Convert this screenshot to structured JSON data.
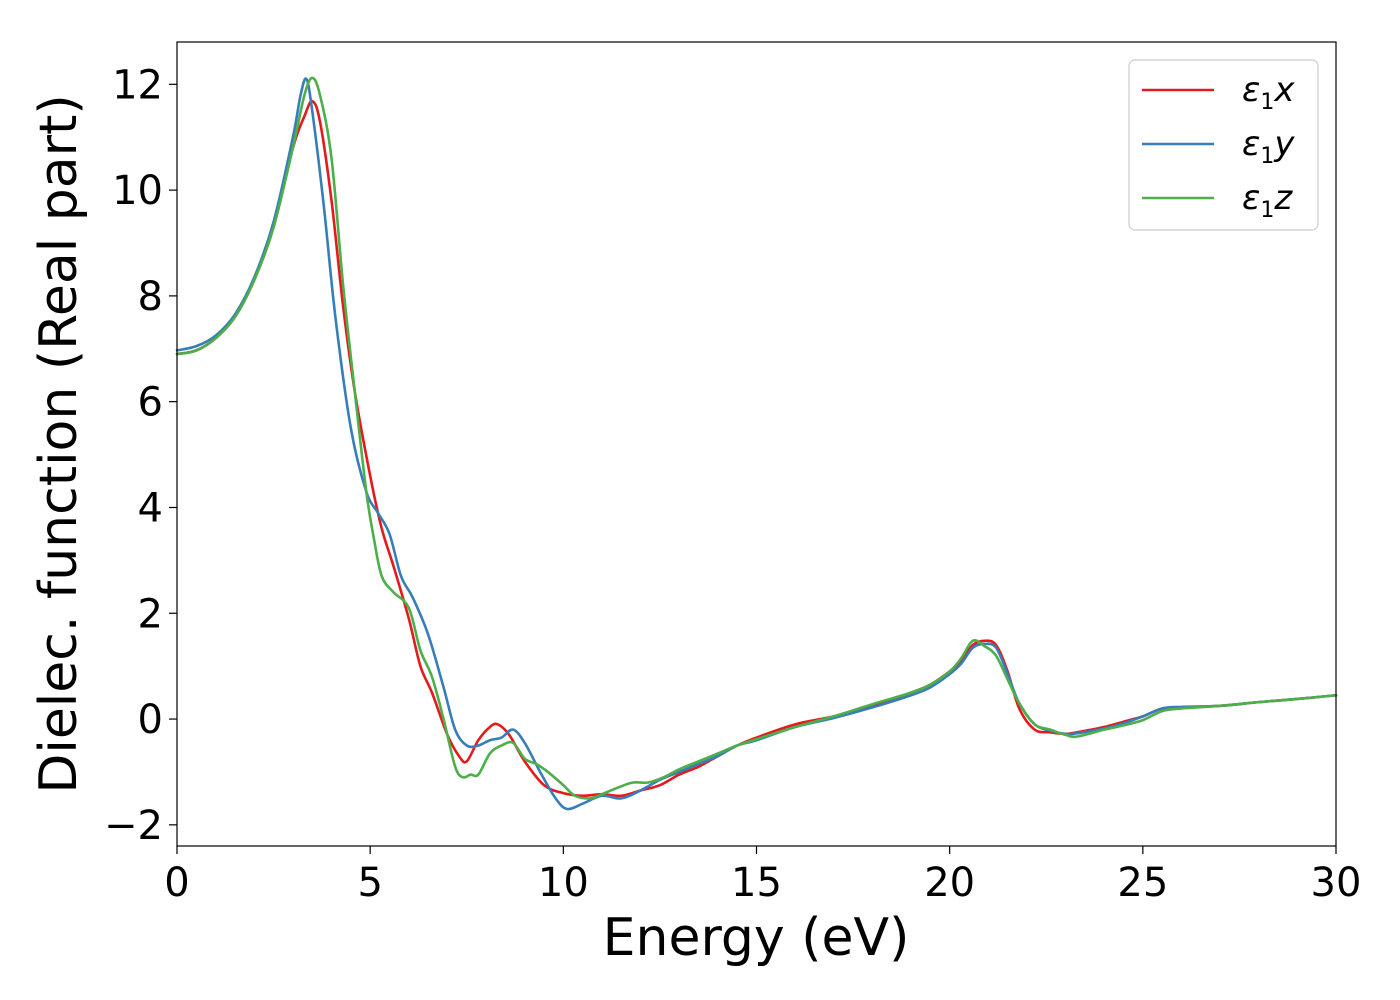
{
  "chart_data": {
    "type": "line",
    "xlabel": "Energy (eV)",
    "ylabel": "Dielec. function (Real part)",
    "xlim": [
      0,
      30
    ],
    "ylim": [
      -2.4,
      12.8
    ],
    "xticks": [
      0,
      5,
      10,
      15,
      20,
      25,
      30
    ],
    "xtick_labels": [
      "0",
      "5",
      "10",
      "15",
      "20",
      "25",
      "30"
    ],
    "yticks": [
      -2,
      0,
      2,
      4,
      6,
      8,
      10,
      12
    ],
    "ytick_labels": [
      "−2",
      "0",
      "2",
      "4",
      "6",
      "8",
      "10",
      "12"
    ],
    "grid": false,
    "legend_position": "top-right",
    "series": [
      {
        "name": "ε1x",
        "legend": {
          "base": "ε",
          "sub": "1",
          "suffix": "x"
        },
        "color": "#e41a1c",
        "x": [
          0,
          0.5,
          1,
          1.5,
          2,
          2.5,
          3,
          3.3,
          3.5,
          3.7,
          4,
          4.3,
          4.6,
          5,
          5.3,
          5.6,
          6,
          6.3,
          6.6,
          7,
          7.3,
          7.5,
          7.8,
          8.1,
          8.3,
          8.6,
          9,
          9.5,
          10,
          10.5,
          11,
          11.5,
          12,
          12.5,
          13,
          13.5,
          14,
          14.5,
          15,
          16,
          17,
          18,
          19,
          19.5,
          20,
          20.3,
          20.6,
          20.9,
          21.2,
          21.5,
          21.8,
          22.2,
          22.6,
          23,
          23.3,
          24,
          24.5,
          25,
          25.5,
          26,
          27,
          28,
          29,
          30
        ],
        "y": [
          6.9,
          6.97,
          7.2,
          7.6,
          8.3,
          9.3,
          10.8,
          11.4,
          11.68,
          11.3,
          9.8,
          7.8,
          6.2,
          4.6,
          3.6,
          2.9,
          1.9,
          1.0,
          0.5,
          -0.3,
          -0.7,
          -0.8,
          -0.4,
          -0.15,
          -0.1,
          -0.3,
          -0.8,
          -1.25,
          -1.4,
          -1.45,
          -1.42,
          -1.45,
          -1.35,
          -1.25,
          -1.05,
          -0.9,
          -0.7,
          -0.5,
          -0.35,
          -0.1,
          0.05,
          0.25,
          0.5,
          0.65,
          0.9,
          1.1,
          1.4,
          1.48,
          1.4,
          0.9,
          0.2,
          -0.2,
          -0.25,
          -0.28,
          -0.25,
          -0.15,
          -0.05,
          0.05,
          0.2,
          0.22,
          0.25,
          0.32,
          0.38,
          0.45
        ]
      },
      {
        "name": "ε1y",
        "legend": {
          "base": "ε",
          "sub": "1",
          "suffix": "y"
        },
        "color": "#377eb8",
        "x": [
          0,
          0.5,
          1,
          1.5,
          2,
          2.5,
          3,
          3.2,
          3.35,
          3.5,
          3.8,
          4.1,
          4.5,
          4.9,
          5.2,
          5.5,
          5.8,
          6.1,
          6.5,
          6.9,
          7.2,
          7.5,
          7.8,
          8.1,
          8.4,
          8.7,
          9,
          9.4,
          9.8,
          10.1,
          10.5,
          11,
          11.5,
          12,
          12.5,
          13,
          13.5,
          14,
          14.5,
          15,
          16,
          17,
          18,
          19,
          19.5,
          20,
          20.3,
          20.6,
          20.9,
          21.2,
          21.5,
          21.8,
          22.2,
          22.6,
          23,
          23.3,
          24,
          24.5,
          25,
          25.5,
          26,
          27,
          28,
          29,
          30
        ],
        "y": [
          6.97,
          7.05,
          7.25,
          7.65,
          8.35,
          9.4,
          11.0,
          11.8,
          12.1,
          11.5,
          9.7,
          7.6,
          5.5,
          4.3,
          3.9,
          3.5,
          2.7,
          2.3,
          1.6,
          0.6,
          -0.2,
          -0.5,
          -0.5,
          -0.4,
          -0.35,
          -0.2,
          -0.45,
          -1.0,
          -1.5,
          -1.7,
          -1.6,
          -1.45,
          -1.5,
          -1.35,
          -1.15,
          -1.0,
          -0.85,
          -0.7,
          -0.5,
          -0.4,
          -0.15,
          0.02,
          0.22,
          0.45,
          0.6,
          0.85,
          1.05,
          1.35,
          1.42,
          1.35,
          0.85,
          0.3,
          -0.1,
          -0.22,
          -0.28,
          -0.27,
          -0.18,
          -0.08,
          0.05,
          0.2,
          0.23,
          0.25,
          0.32,
          0.38,
          0.45
        ]
      },
      {
        "name": "ε1z",
        "legend": {
          "base": "ε",
          "sub": "1",
          "suffix": "z"
        },
        "color": "#4daf4a",
        "x": [
          0,
          0.5,
          1,
          1.5,
          2,
          2.5,
          3,
          3.3,
          3.5,
          3.7,
          4,
          4.3,
          4.6,
          4.9,
          5.1,
          5.3,
          5.6,
          6,
          6.3,
          6.6,
          6.9,
          7.2,
          7.4,
          7.6,
          7.8,
          8.1,
          8.4,
          8.7,
          9,
          9.3,
          9.6,
          10,
          10.3,
          10.7,
          11,
          11.4,
          11.8,
          12.2,
          12.6,
          13,
          13.5,
          14,
          14.5,
          15,
          16,
          17,
          18,
          19,
          19.5,
          20,
          20.3,
          20.6,
          20.9,
          21.2,
          21.5,
          21.8,
          22.2,
          22.6,
          23,
          23.3,
          24,
          24.5,
          25,
          25.5,
          26,
          27,
          28,
          29,
          30
        ],
        "y": [
          6.9,
          6.97,
          7.2,
          7.6,
          8.3,
          9.3,
          10.8,
          11.8,
          12.12,
          11.8,
          10.6,
          8.2,
          6.2,
          4.3,
          3.4,
          2.7,
          2.4,
          2.1,
          1.3,
          0.8,
          0.0,
          -0.9,
          -1.1,
          -1.05,
          -1.05,
          -0.65,
          -0.5,
          -0.45,
          -0.75,
          -0.85,
          -1.0,
          -1.25,
          -1.45,
          -1.5,
          -1.42,
          -1.3,
          -1.2,
          -1.2,
          -1.1,
          -0.95,
          -0.8,
          -0.65,
          -0.5,
          -0.38,
          -0.15,
          0.05,
          0.28,
          0.5,
          0.65,
          0.9,
          1.15,
          1.48,
          1.38,
          1.2,
          0.75,
          0.3,
          -0.1,
          -0.2,
          -0.3,
          -0.33,
          -0.2,
          -0.12,
          -0.02,
          0.15,
          0.2,
          0.25,
          0.32,
          0.38,
          0.45
        ]
      }
    ]
  }
}
